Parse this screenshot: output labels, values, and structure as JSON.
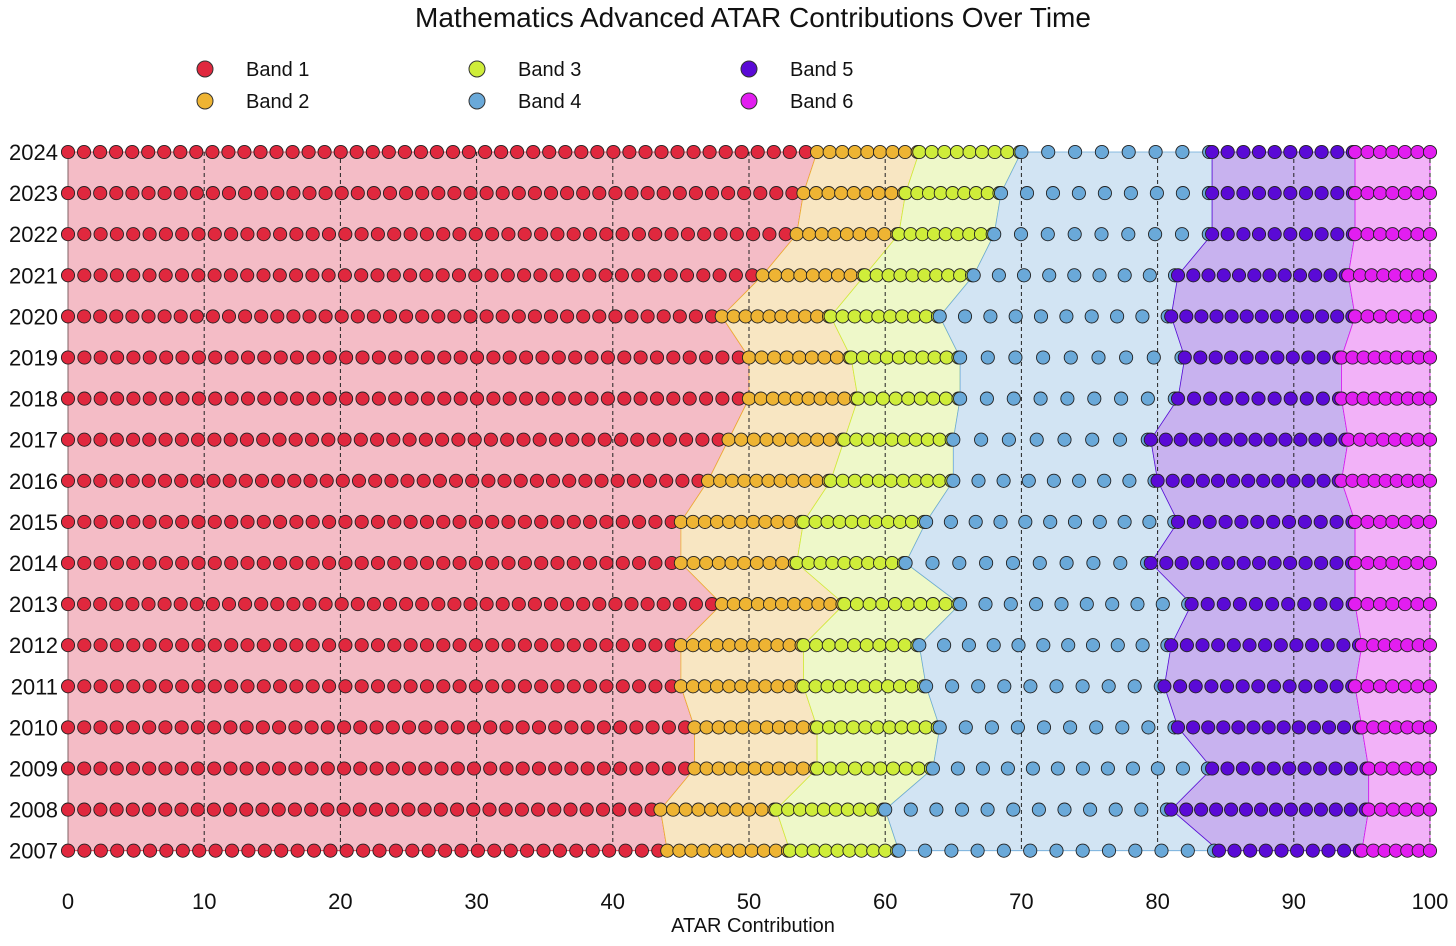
{
  "chart_data": {
    "type": "scatter",
    "title": "Mathematics Advanced ATAR Contributions Over Time",
    "xlabel": "ATAR Contribution",
    "ylabel": "",
    "xlim": [
      0,
      100
    ],
    "x_ticks": [
      0,
      10,
      20,
      30,
      40,
      50,
      60,
      70,
      80,
      90,
      100
    ],
    "vertical_gridlines": [
      10,
      20,
      30,
      40,
      50,
      60,
      70,
      80,
      90,
      100
    ],
    "grid_style": "dashed",
    "legend_placement": "top-left",
    "years": [
      2024,
      2023,
      2022,
      2021,
      2020,
      2019,
      2018,
      2017,
      2016,
      2015,
      2014,
      2013,
      2012,
      2011,
      2010,
      2009,
      2008,
      2007
    ],
    "bands": [
      {
        "name": "Band 1",
        "color": "#e0283e",
        "fill": "#f4bcc6"
      },
      {
        "name": "Band 2",
        "color": "#eeb433",
        "fill": "#f8e6c2"
      },
      {
        "name": "Band 3",
        "color": "#cfed3a",
        "fill": "#eef8c9"
      },
      {
        "name": "Band 4",
        "color": "#6aa9d9",
        "fill": "#d2e4f3"
      },
      {
        "name": "Band 5",
        "color": "#5a0ad6",
        "fill": "#c8b2ef"
      },
      {
        "name": "Band 6",
        "color": "#e21ef0",
        "fill": "#f2b2f8"
      }
    ],
    "band_boundaries_description": "For each year: ATAR contribution value where Band 1|2, 2|3, 3|4, 4|5, 5|6 meet",
    "boundaries": {
      "2024": [
        55.0,
        62.5,
        70.0,
        84.0,
        94.5
      ],
      "2023": [
        54.0,
        61.5,
        68.5,
        84.0,
        94.5
      ],
      "2022": [
        53.5,
        61.0,
        68.0,
        84.0,
        94.5
      ],
      "2021": [
        51.0,
        58.5,
        66.5,
        81.5,
        94.0
      ],
      "2020": [
        48.0,
        56.0,
        64.0,
        81.0,
        94.5
      ],
      "2019": [
        50.0,
        57.5,
        65.5,
        82.0,
        93.5
      ],
      "2018": [
        50.0,
        58.0,
        65.5,
        81.5,
        93.5
      ],
      "2017": [
        48.5,
        57.0,
        65.0,
        79.5,
        94.0
      ],
      "2016": [
        47.0,
        56.0,
        65.0,
        80.0,
        93.5
      ],
      "2015": [
        45.0,
        54.0,
        63.0,
        81.5,
        94.5
      ],
      "2014": [
        45.0,
        53.5,
        61.5,
        79.5,
        94.5
      ],
      "2013": [
        48.0,
        57.0,
        65.5,
        82.5,
        94.5
      ],
      "2012": [
        45.0,
        54.0,
        62.5,
        81.0,
        95.0
      ],
      "2011": [
        45.0,
        54.0,
        63.0,
        80.5,
        94.5
      ],
      "2010": [
        46.0,
        55.0,
        64.0,
        81.5,
        95.0
      ],
      "2009": [
        46.0,
        55.0,
        63.5,
        84.0,
        95.5
      ],
      "2008": [
        43.5,
        52.0,
        60.0,
        81.0,
        95.5
      ],
      "2007": [
        44.0,
        53.0,
        61.0,
        84.5,
        95.0
      ]
    }
  }
}
